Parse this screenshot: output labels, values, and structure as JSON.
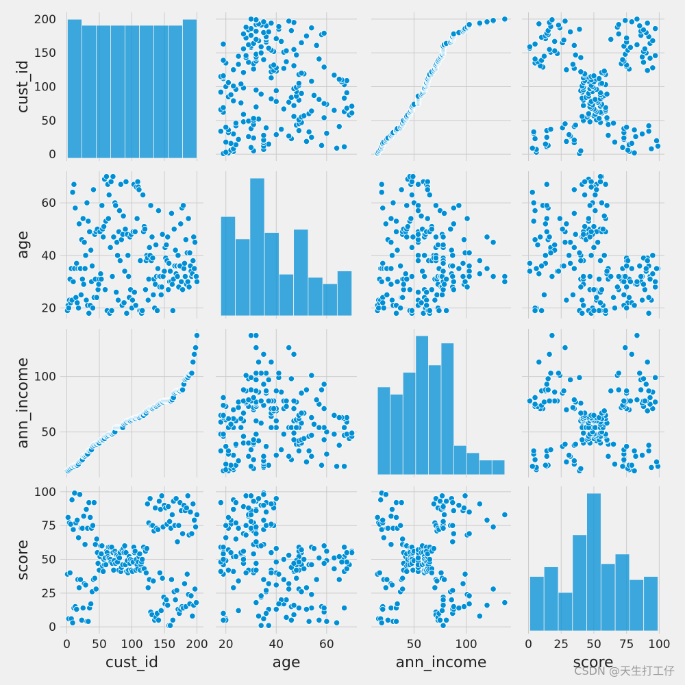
{
  "chart_data": {
    "type": "pairplot",
    "variables": [
      "cust_id",
      "age",
      "ann_income",
      "score"
    ],
    "axes": {
      "cust_id": {
        "lim": [
          -10,
          210
        ],
        "ticks": [
          0,
          50,
          100,
          150,
          200
        ]
      },
      "age": {
        "lim": [
          16,
          72
        ],
        "ticks": [
          20,
          40,
          60
        ]
      },
      "ann_income": {
        "lim": [
          9,
          143
        ],
        "ticks": [
          50,
          100
        ]
      },
      "score": {
        "lim": [
          -5,
          104
        ],
        "ticks": [
          0,
          25,
          50,
          75,
          100
        ]
      }
    },
    "histograms": {
      "cust_id": {
        "bins": [
          1,
          23.11,
          45.22,
          67.33,
          89.44,
          111.56,
          133.67,
          155.78,
          177.89,
          200
        ],
        "counts": [
          23,
          22,
          22,
          22,
          22,
          22,
          22,
          22,
          23
        ]
      },
      "age": {
        "bins": [
          18,
          23.78,
          29.56,
          35.33,
          41.11,
          46.89,
          52.67,
          58.44,
          64.22,
          70
        ],
        "counts": [
          31,
          24,
          43,
          26,
          13,
          27,
          12,
          10,
          14
        ]
      },
      "ann_income": {
        "bins": [
          15,
          27.2,
          39.4,
          51.6,
          63.8,
          76,
          88.2,
          100.4,
          112.6,
          124.8,
          137
        ],
        "counts": [
          24,
          22,
          28,
          38,
          30,
          36,
          8,
          6,
          4,
          4
        ]
      },
      "score": {
        "bins": [
          1,
          11.89,
          22.78,
          33.67,
          44.56,
          55.44,
          66.33,
          77.22,
          88.11,
          99
        ],
        "counts": [
          17,
          20,
          12,
          30,
          43,
          21,
          24,
          16,
          17
        ]
      }
    },
    "color": "#008fd5",
    "grid": true,
    "watermark": "CSDN @天生打工仔",
    "data": {
      "cust_id": [
        1,
        2,
        3,
        4,
        5,
        6,
        7,
        8,
        9,
        10,
        11,
        12,
        13,
        14,
        15,
        16,
        17,
        18,
        19,
        20,
        21,
        22,
        23,
        24,
        25,
        26,
        27,
        28,
        29,
        30,
        31,
        32,
        33,
        34,
        35,
        36,
        37,
        38,
        39,
        40,
        41,
        42,
        43,
        44,
        45,
        46,
        47,
        48,
        49,
        50,
        51,
        52,
        53,
        54,
        55,
        56,
        57,
        58,
        59,
        60,
        61,
        62,
        63,
        64,
        65,
        66,
        67,
        68,
        69,
        70,
        71,
        72,
        73,
        74,
        75,
        76,
        77,
        78,
        79,
        80,
        81,
        82,
        83,
        84,
        85,
        86,
        87,
        88,
        89,
        90,
        91,
        92,
        93,
        94,
        95,
        96,
        97,
        98,
        99,
        100,
        101,
        102,
        103,
        104,
        105,
        106,
        107,
        108,
        109,
        110,
        111,
        112,
        113,
        114,
        115,
        116,
        117,
        118,
        119,
        120,
        121,
        122,
        123,
        124,
        125,
        126,
        127,
        128,
        129,
        130,
        131,
        132,
        133,
        134,
        135,
        136,
        137,
        138,
        139,
        140,
        141,
        142,
        143,
        144,
        145,
        146,
        147,
        148,
        149,
        150,
        151,
        152,
        153,
        154,
        155,
        156,
        157,
        158,
        159,
        160,
        161,
        162,
        163,
        164,
        165,
        166,
        167,
        168,
        169,
        170,
        171,
        172,
        173,
        174,
        175,
        176,
        177,
        178,
        179,
        180,
        181,
        182,
        183,
        184,
        185,
        186,
        187,
        188,
        189,
        190,
        191,
        192,
        193,
        194,
        195,
        196,
        197,
        198,
        199,
        200
      ],
      "age": [
        19,
        21,
        20,
        23,
        31,
        22,
        35,
        23,
        64,
        30,
        67,
        35,
        58,
        24,
        37,
        22,
        35,
        20,
        52,
        35,
        35,
        25,
        46,
        31,
        54,
        29,
        45,
        35,
        40,
        23,
        60,
        21,
        53,
        18,
        49,
        21,
        42,
        30,
        36,
        20,
        65,
        24,
        48,
        31,
        49,
        24,
        50,
        27,
        29,
        31,
        49,
        33,
        31,
        59,
        50,
        47,
        51,
        69,
        27,
        53,
        70,
        19,
        67,
        54,
        63,
        18,
        43,
        68,
        19,
        32,
        70,
        47,
        60,
        60,
        59,
        26,
        45,
        40,
        23,
        49,
        57,
        38,
        67,
        46,
        21,
        48,
        55,
        22,
        34,
        50,
        68,
        18,
        48,
        40,
        32,
        24,
        47,
        27,
        48,
        20,
        23,
        49,
        67,
        26,
        49,
        21,
        66,
        54,
        68,
        66,
        65,
        19,
        38,
        19,
        18,
        19,
        63,
        49,
        51,
        50,
        27,
        38,
        40,
        39,
        23,
        31,
        43,
        40,
        59,
        38,
        47,
        39,
        25,
        31,
        20,
        29,
        44,
        32,
        19,
        35,
        57,
        32,
        28,
        32,
        25,
        28,
        48,
        32,
        34,
        34,
        43,
        39,
        44,
        38,
        47,
        27,
        37,
        30,
        34,
        30,
        56,
        29,
        19,
        31,
        50,
        36,
        42,
        33,
        36,
        32,
        40,
        28,
        36,
        36,
        52,
        30,
        58,
        27,
        59,
        35,
        37,
        32,
        46,
        29,
        41,
        30,
        54,
        28,
        41,
        36,
        34,
        32,
        33,
        38,
        47,
        35,
        45,
        32,
        32,
        30
      ],
      "ann_income": [
        15,
        15,
        16,
        16,
        17,
        17,
        18,
        18,
        19,
        19,
        19,
        19,
        20,
        20,
        20,
        20,
        21,
        21,
        23,
        23,
        24,
        24,
        25,
        25,
        28,
        28,
        28,
        28,
        29,
        29,
        30,
        30,
        33,
        33,
        33,
        33,
        34,
        34,
        37,
        37,
        38,
        38,
        39,
        39,
        39,
        39,
        40,
        40,
        40,
        40,
        42,
        42,
        43,
        43,
        43,
        43,
        44,
        44,
        46,
        46,
        46,
        46,
        47,
        47,
        48,
        48,
        48,
        48,
        48,
        48,
        49,
        49,
        50,
        50,
        54,
        54,
        54,
        54,
        54,
        54,
        54,
        54,
        54,
        54,
        54,
        54,
        57,
        57,
        58,
        58,
        59,
        59,
        60,
        60,
        60,
        60,
        60,
        60,
        61,
        61,
        62,
        62,
        62,
        62,
        62,
        62,
        63,
        63,
        63,
        63,
        63,
        63,
        64,
        64,
        65,
        65,
        65,
        65,
        67,
        67,
        67,
        67,
        69,
        69,
        70,
        70,
        71,
        71,
        71,
        71,
        71,
        71,
        72,
        72,
        73,
        73,
        73,
        73,
        74,
        74,
        75,
        75,
        76,
        76,
        77,
        77,
        77,
        77,
        78,
        78,
        78,
        78,
        78,
        78,
        78,
        78,
        78,
        78,
        78,
        78,
        79,
        79,
        81,
        81,
        85,
        85,
        86,
        86,
        87,
        87,
        87,
        87,
        87,
        87,
        88,
        88,
        88,
        88,
        93,
        93,
        97,
        97,
        98,
        98,
        99,
        99,
        101,
        101,
        103,
        103,
        103,
        103,
        113,
        113,
        120,
        120,
        126,
        126,
        137,
        137
      ],
      "score": [
        39,
        81,
        6,
        77,
        40,
        76,
        6,
        94,
        3,
        72,
        14,
        99,
        15,
        77,
        13,
        79,
        35,
        66,
        29,
        98,
        35,
        73,
        5,
        73,
        14,
        82,
        32,
        61,
        31,
        87,
        4,
        73,
        4,
        92,
        14,
        81,
        17,
        73,
        26,
        75,
        35,
        92,
        36,
        61,
        28,
        65,
        55,
        47,
        42,
        42,
        52,
        60,
        54,
        60,
        45,
        41,
        50,
        46,
        51,
        46,
        56,
        55,
        52,
        59,
        51,
        59,
        50,
        48,
        59,
        47,
        55,
        42,
        49,
        56,
        47,
        54,
        53,
        48,
        52,
        42,
        51,
        55,
        41,
        44,
        57,
        46,
        58,
        55,
        60,
        46,
        55,
        41,
        49,
        40,
        42,
        52,
        47,
        50,
        42,
        49,
        41,
        48,
        59,
        55,
        56,
        42,
        50,
        46,
        43,
        48,
        52,
        54,
        42,
        46,
        48,
        50,
        43,
        59,
        43,
        57,
        56,
        40,
        58,
        91,
        29,
        77,
        35,
        95,
        11,
        75,
        9,
        75,
        34,
        71,
        5,
        88,
        7,
        73,
        10,
        72,
        5,
        93,
        40,
        87,
        12,
        97,
        36,
        74,
        22,
        90,
        17,
        88,
        20,
        76,
        16,
        89,
        1,
        78,
        1,
        73,
        35,
        83,
        5,
        93,
        26,
        75,
        20,
        95,
        27,
        63,
        13,
        75,
        10,
        92,
        13,
        86,
        15,
        69,
        14,
        90,
        32,
        86,
        15,
        88,
        39,
        97,
        24,
        68,
        17,
        85,
        23,
        69,
        8,
        91,
        16,
        79,
        28,
        74,
        18,
        83
      ]
    }
  }
}
